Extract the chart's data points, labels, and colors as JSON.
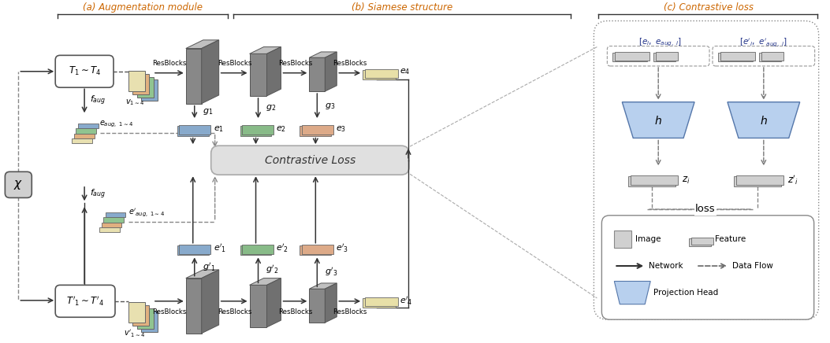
{
  "bg_color": "#ffffff",
  "section_a_label": "(a) Augmentation module",
  "section_b_label": "(b) Siamese structure",
  "section_c_label": "(c) Contrastive loss",
  "label_color": "#cc6600",
  "gray_dark": "#808080",
  "gray_med": "#b0b0b0",
  "gray_light": "#d0d0d0",
  "gray_cube_front": "#888888",
  "gray_cube_top": "#c0c0c0",
  "gray_cube_side": "#707070",
  "blue_feat": "#88aacc",
  "blue_img": "#88aadd",
  "blue_proj": "#b8d0ee",
  "green_feat": "#88bb88",
  "orange_feat": "#ddaa88",
  "yellow_feat": "#e8e0a8",
  "yellow_img": "#e8e0b0",
  "orange_img": "#e0b080",
  "green_img": "#90c490",
  "blue_img2": "#88aacc",
  "dashed_color": "#888888",
  "arrow_color": "#333333",
  "contrastive_bg": "#e0e0e0",
  "text_dark": "#333333"
}
